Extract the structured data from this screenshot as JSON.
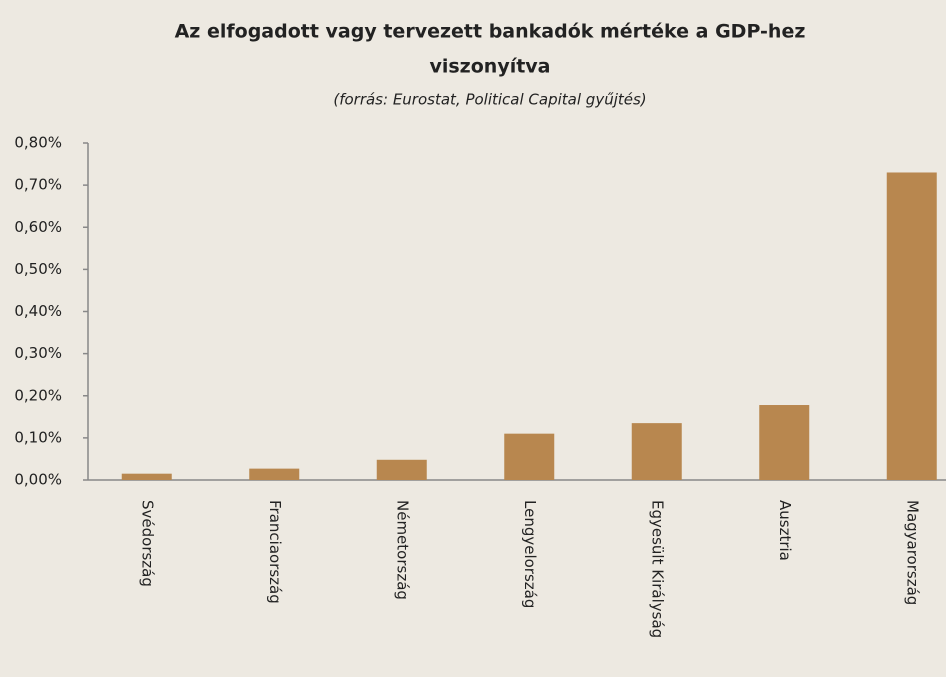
{
  "chart_data": {
    "type": "bar",
    "title": [
      "Az elfogadott vagy tervezett bankadók mértéke a GDP-hez",
      "viszonyítva"
    ],
    "subtitle": "(forrás: Eurostat, Political Capital gyűjtés)",
    "categories": [
      "Svédország",
      "Franciaország",
      "Németország",
      "Lengyelország",
      "Egyesült Királyság",
      "Ausztria",
      "Magyarország"
    ],
    "values": [
      0.015,
      0.027,
      0.048,
      0.11,
      0.135,
      0.178,
      0.73
    ],
    "color": "#b8874f",
    "ylim": [
      0,
      0.8
    ],
    "yticks": [
      {
        "value": 0,
        "label": "0,00%"
      },
      {
        "value": 0.1,
        "label": "0,10%"
      },
      {
        "value": 0.2,
        "label": "0,20%"
      },
      {
        "value": 0.3,
        "label": "0,30%"
      },
      {
        "value": 0.4,
        "label": "0,40%"
      },
      {
        "value": 0.5,
        "label": "0,50%"
      },
      {
        "value": 0.6,
        "label": "0,60%"
      },
      {
        "value": 0.7,
        "label": "0,70%"
      },
      {
        "value": 0.8,
        "label": "0,80%"
      }
    ],
    "grid": false
  }
}
